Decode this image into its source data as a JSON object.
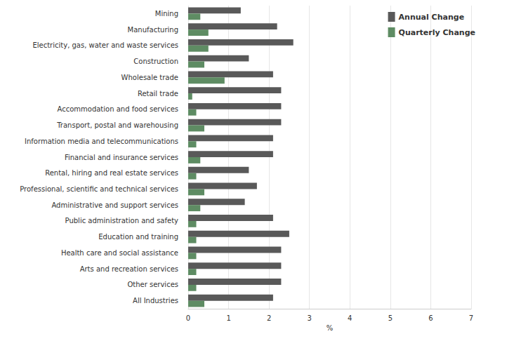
{
  "chart_data": {
    "type": "bar",
    "orientation": "horizontal",
    "categories": [
      "Mining",
      "Manufacturing",
      "Electricity, gas, water and waste services",
      "Construction",
      "Wholesale trade",
      "Retail trade",
      "Accommodation and food services",
      "Transport, postal and warehousing",
      "Information media and telecommunications",
      "Financial and insurance services",
      "Rental, hiring and real estate services",
      "Professional, scientific and technical services",
      "Administrative and support services",
      "Public administration and safety",
      "Education and training",
      "Health care and social assistance",
      "Arts and recreation services",
      "Other services",
      "All Industries"
    ],
    "series": [
      {
        "name": "Annual Change",
        "color": "#595959",
        "values": [
          1.3,
          2.2,
          2.6,
          1.5,
          2.1,
          2.3,
          2.3,
          2.3,
          2.1,
          2.1,
          1.5,
          1.7,
          1.4,
          2.1,
          2.5,
          2.3,
          2.3,
          2.3,
          2.1
        ]
      },
      {
        "name": "Quarterly Change",
        "color": "#5e8c63",
        "values": [
          0.3,
          0.5,
          0.5,
          0.4,
          0.9,
          0.1,
          0.2,
          0.4,
          0.2,
          0.3,
          0.2,
          0.4,
          0.3,
          0.2,
          0.2,
          0.2,
          0.2,
          0.2,
          0.4
        ]
      }
    ],
    "x_label": "%",
    "xlim": [
      0,
      7
    ],
    "xticks": [
      0,
      1,
      2,
      3,
      4,
      5,
      6,
      7
    ],
    "grid": true,
    "legend": "top-right"
  }
}
